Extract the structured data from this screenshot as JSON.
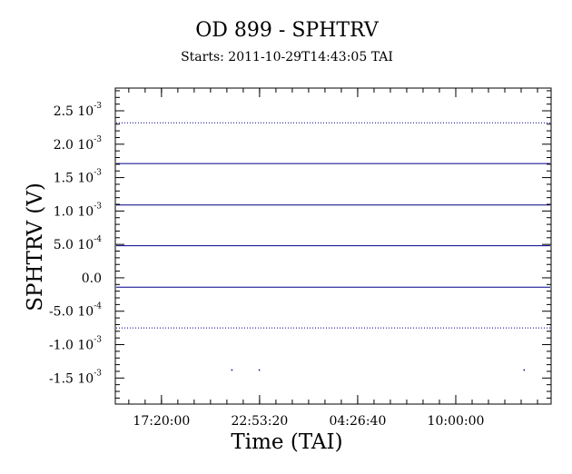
{
  "chart_data": {
    "type": "scatter",
    "title": "OD 899 - SPHTRV",
    "subtitle": "Starts: 2011-10-29T14:43:05 TAI",
    "xlabel": "Time (TAI)",
    "ylabel": "SPHTRV (V)",
    "x_range": [
      "2011-10-29T14:43:05",
      "2011-10-30T15:24:00"
    ],
    "ylim": [
      -0.00189,
      0.00284
    ],
    "x_ticks": [
      {
        "label": "17:20:00",
        "value": "2011-10-29T17:20:00"
      },
      {
        "label": "22:53:20",
        "value": "2011-10-29T22:53:20"
      },
      {
        "label": "04:26:40",
        "value": "2011-10-30T04:26:40"
      },
      {
        "label": "10:00:00",
        "value": "2011-10-30T10:00:00"
      }
    ],
    "y_ticks": [
      {
        "mant": "2.5 10",
        "exp": "-3",
        "value": 0.0025
      },
      {
        "mant": "2.0 10",
        "exp": "-3",
        "value": 0.002
      },
      {
        "mant": "1.5 10",
        "exp": "-3",
        "value": 0.0015
      },
      {
        "mant": "1.0 10",
        "exp": "-3",
        "value": 0.001
      },
      {
        "mant": "5.0 10",
        "exp": "-4",
        "value": 0.0005
      },
      {
        "mant": "0.0",
        "exp": "",
        "value": 0
      },
      {
        "mant": "-5.0 10",
        "exp": "-4",
        "value": -0.0005
      },
      {
        "mant": "-1.0 10",
        "exp": "-3",
        "value": -0.001
      },
      {
        "mant": "-1.5 10",
        "exp": "-3",
        "value": -0.0015
      }
    ],
    "series": [
      {
        "values": [
          {
            "y": 0.00232,
            "style": "dotted"
          },
          {
            "y": 0.00171,
            "style": "solid"
          },
          {
            "y": 0.00109,
            "style": "solid"
          },
          {
            "y": 0.00048,
            "style": "solid"
          },
          {
            "y": -0.00014,
            "style": "solid"
          },
          {
            "y": -0.00075,
            "style": "dotted"
          }
        ],
        "isolated_points": [
          {
            "x": "2011-10-29T21:17:00",
            "y": -0.00137
          },
          {
            "x": "2011-10-29T22:50:00",
            "y": -0.00137
          },
          {
            "x": "2011-10-30T13:50:00",
            "y": -0.00137
          }
        ]
      }
    ],
    "colors": {
      "series": "#00008b",
      "axes": "#000000"
    },
    "grid": false,
    "legend": "none"
  }
}
